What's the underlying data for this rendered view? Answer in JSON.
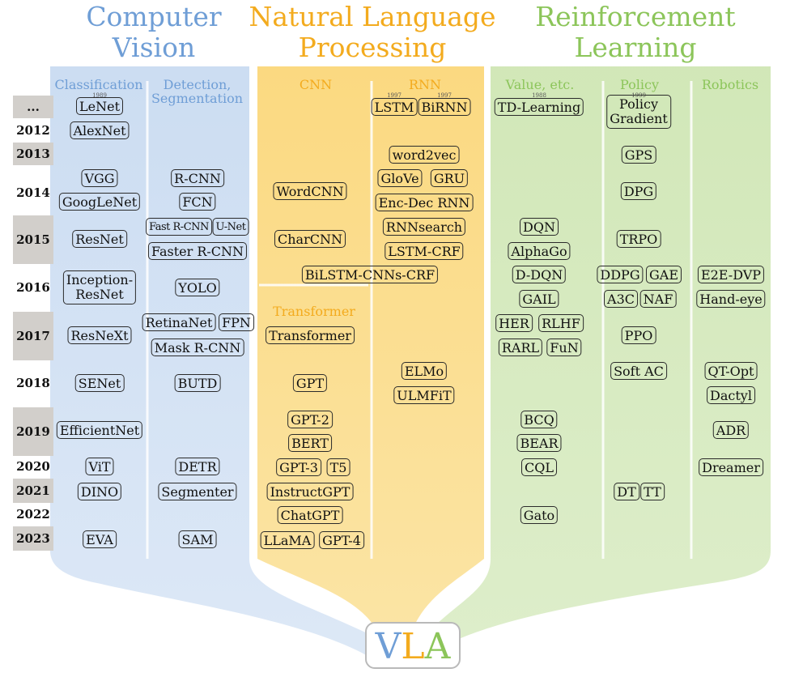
{
  "headers": {
    "cv_line1": "Computer",
    "cv_line2": "Vision",
    "nlp_line1": "Natural Language",
    "nlp_line2": "Processing",
    "rl_line1": "Reinforcement",
    "rl_line2": "Learning"
  },
  "subheaders": {
    "classification": "Classification",
    "detection_line1": "Detection,",
    "detection_line2": "Segmentation",
    "cnn": "CNN",
    "rnn": "RNN",
    "transformer": "Transformer",
    "value": "Value, etc.",
    "policy": "Policy",
    "robotics": "Robotics"
  },
  "years": [
    "...",
    "2012",
    "2013",
    "2014",
    "2015",
    "2016",
    "2017",
    "2018",
    "2019",
    "2020",
    "2021",
    "2022",
    "2023"
  ],
  "small_years": {
    "lenet": "1989",
    "lstm": "1997",
    "birnn": "1997",
    "td": "1988",
    "pg": "1999"
  },
  "models": {
    "lenet": "LeNet",
    "alexnet": "AlexNet",
    "vgg": "VGG",
    "googlenet": "GoogLeNet",
    "resnet": "ResNet",
    "inception_l1": "Inception-",
    "inception_l2": "ResNet",
    "resnext": "ResNeXt",
    "senet": "SENet",
    "efficientnet": "EfficientNet",
    "vit": "ViT",
    "dino": "DINO",
    "eva": "EVA",
    "rcnn": "R-CNN",
    "fcn": "FCN",
    "fastrcnn": "Fast R-CNN",
    "unet": "U-Net",
    "fasterrcnn": "Faster R-CNN",
    "yolo": "YOLO",
    "retinanet": "RetinaNet",
    "fpn": "FPN",
    "maskrcnn": "Mask R-CNN",
    "butd": "BUTD",
    "detr": "DETR",
    "segmenter": "Segmenter",
    "sam": "SAM",
    "wordcnn": "WordCNN",
    "charcnn": "CharCNN",
    "bilstm": "BiLSTM-CNNs-CRF",
    "transformer": "Transformer",
    "gpt": "GPT",
    "gpt2": "GPT-2",
    "bert": "BERT",
    "gpt3": "GPT-3",
    "t5": "T5",
    "instructgpt": "InstructGPT",
    "chatgpt": "ChatGPT",
    "llama": "LLaMA",
    "gpt4": "GPT-4",
    "lstm": "LSTM",
    "birnn": "BiRNN",
    "word2vec": "word2vec",
    "glove": "GloVe",
    "gru": "GRU",
    "encdec": "Enc-Dec RNN",
    "rnnsearch": "RNNsearch",
    "lstmcrf": "LSTM-CRF",
    "elmo": "ELMo",
    "ulmfit": "ULMFiT",
    "td": "TD-Learning",
    "dqn": "DQN",
    "alphago": "AlphaGo",
    "ddqn": "D-DQN",
    "gail": "GAIL",
    "her": "HER",
    "rlhf": "RLHF",
    "rarl": "RARL",
    "fun": "FuN",
    "bcq": "BCQ",
    "bear": "BEAR",
    "cql": "CQL",
    "gato": "Gato",
    "pg_l1": "Policy",
    "pg_l2": "Gradient",
    "gps": "GPS",
    "dpg": "DPG",
    "trpo": "TRPO",
    "ddpg": "DDPG",
    "gae": "GAE",
    "a3c": "A3C",
    "naf": "NAF",
    "ppo": "PPO",
    "softac": "Soft AC",
    "dt": "DT",
    "tt": "TT",
    "e2e": "E2E-DVP",
    "handeye": "Hand-eye",
    "qtopt": "QT-Opt",
    "dactyl": "Dactyl",
    "adr": "ADR",
    "dreamer": "Dreamer"
  },
  "vla": {
    "v": "V",
    "l": "L",
    "a": "A"
  },
  "colors": {
    "cv": "#6f9ed6",
    "nlp": "#f3ab1e",
    "rl": "#8cc55a",
    "year_bg": "#d2cfcb"
  }
}
